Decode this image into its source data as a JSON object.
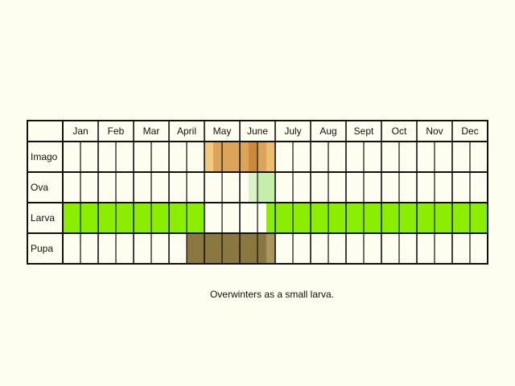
{
  "chart_data": {
    "type": "table",
    "months": [
      "Jan",
      "Feb",
      "Mar",
      "Apr",
      "May",
      "Jun",
      "Jul",
      "Aug",
      "Sep",
      "Oct",
      "Nov",
      "Dec"
    ],
    "month_labels": [
      "Jan",
      "Feb",
      "Mar",
      "April",
      "May",
      "June",
      "July",
      "Aug",
      "Sept",
      "Oct",
      "Nov",
      "Dec"
    ],
    "stages": [
      {
        "label": "Imago",
        "color": "#e0a85a",
        "periods": [
          {
            "start": 5.0,
            "end": 5.25,
            "color": "#f2c97e"
          },
          {
            "start": 5.25,
            "end": 6.75,
            "color": "#dba458"
          },
          {
            "start": 6.25,
            "end": 6.5,
            "color": "#c98a3e"
          },
          {
            "start": 6.75,
            "end": 7.0,
            "color": "#ebbf72"
          }
        ]
      },
      {
        "label": "Ova",
        "color": "#c4eeaa",
        "periods": [
          {
            "start": 6.25,
            "end": 6.5,
            "color": "#d9f3c4"
          },
          {
            "start": 6.5,
            "end": 7.0,
            "color": "#c4eeaa"
          }
        ]
      },
      {
        "label": "Larva",
        "color": "#8bee00",
        "periods": [
          {
            "start": 1.0,
            "end": 5.0,
            "color": "#8bee00"
          },
          {
            "start": 6.75,
            "end": 13.0,
            "color": "#8bee00"
          }
        ]
      },
      {
        "label": "Pupa",
        "color": "#8b7840",
        "periods": [
          {
            "start": 4.5,
            "end": 6.75,
            "color": "#8b7840"
          },
          {
            "start": 6.75,
            "end": 7.0,
            "color": "#a89560"
          }
        ]
      }
    ],
    "weeks_per_month": 2
  },
  "caption": "Overwinters as a small larva."
}
